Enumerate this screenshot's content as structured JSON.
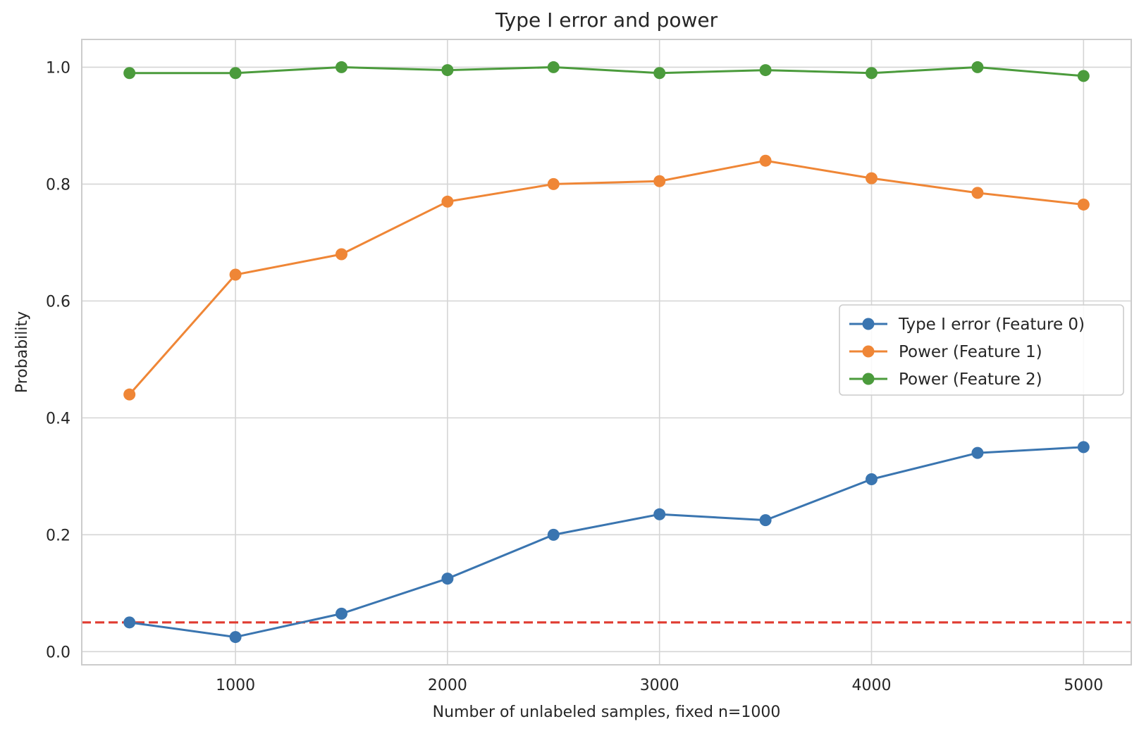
{
  "chart_data": {
    "type": "line",
    "title": "Type I error and power",
    "xlabel": "Number of unlabeled samples, fixed n=1000",
    "ylabel": "Probability",
    "x": [
      500,
      1000,
      1500,
      2000,
      2500,
      3000,
      3500,
      4000,
      4500,
      5000
    ],
    "xlim": [
      275,
      5225
    ],
    "ylim": [
      -0.0225,
      1.0475
    ],
    "xticks": [
      1000,
      2000,
      3000,
      4000,
      5000
    ],
    "xtick_labels": [
      "1000",
      "2000",
      "3000",
      "4000",
      "5000"
    ],
    "yticks": [
      0.0,
      0.2,
      0.4,
      0.6,
      0.8,
      1.0
    ],
    "ytick_labels": [
      "0.0",
      "0.2",
      "0.4",
      "0.6",
      "0.8",
      "1.0"
    ],
    "grid": true,
    "legend_position": "center-right",
    "series": [
      {
        "name": "Type I error (Feature 0)",
        "color": "#3a75b0",
        "marker": "circle",
        "values": [
          0.05,
          0.025,
          0.065,
          0.125,
          0.2,
          0.235,
          0.225,
          0.295,
          0.34,
          0.35
        ]
      },
      {
        "name": "Power (Feature 1)",
        "color": "#ef8636",
        "marker": "circle",
        "values": [
          0.44,
          0.645,
          0.68,
          0.77,
          0.8,
          0.805,
          0.84,
          0.81,
          0.785,
          0.765
        ]
      },
      {
        "name": "Power (Feature 2)",
        "color": "#4b9b3c",
        "marker": "circle",
        "values": [
          0.99,
          0.99,
          1.0,
          0.995,
          1.0,
          0.99,
          0.995,
          0.99,
          1.0,
          0.985
        ]
      }
    ],
    "reference_line": {
      "orientation": "horizontal",
      "y": 0.05,
      "style": "dashed",
      "color": "#e03c31"
    },
    "colors": {
      "grid": "#d5d5d5",
      "axes_edge": "#cccccc",
      "legend_edge": "#cccccc",
      "text": "#262626"
    }
  }
}
